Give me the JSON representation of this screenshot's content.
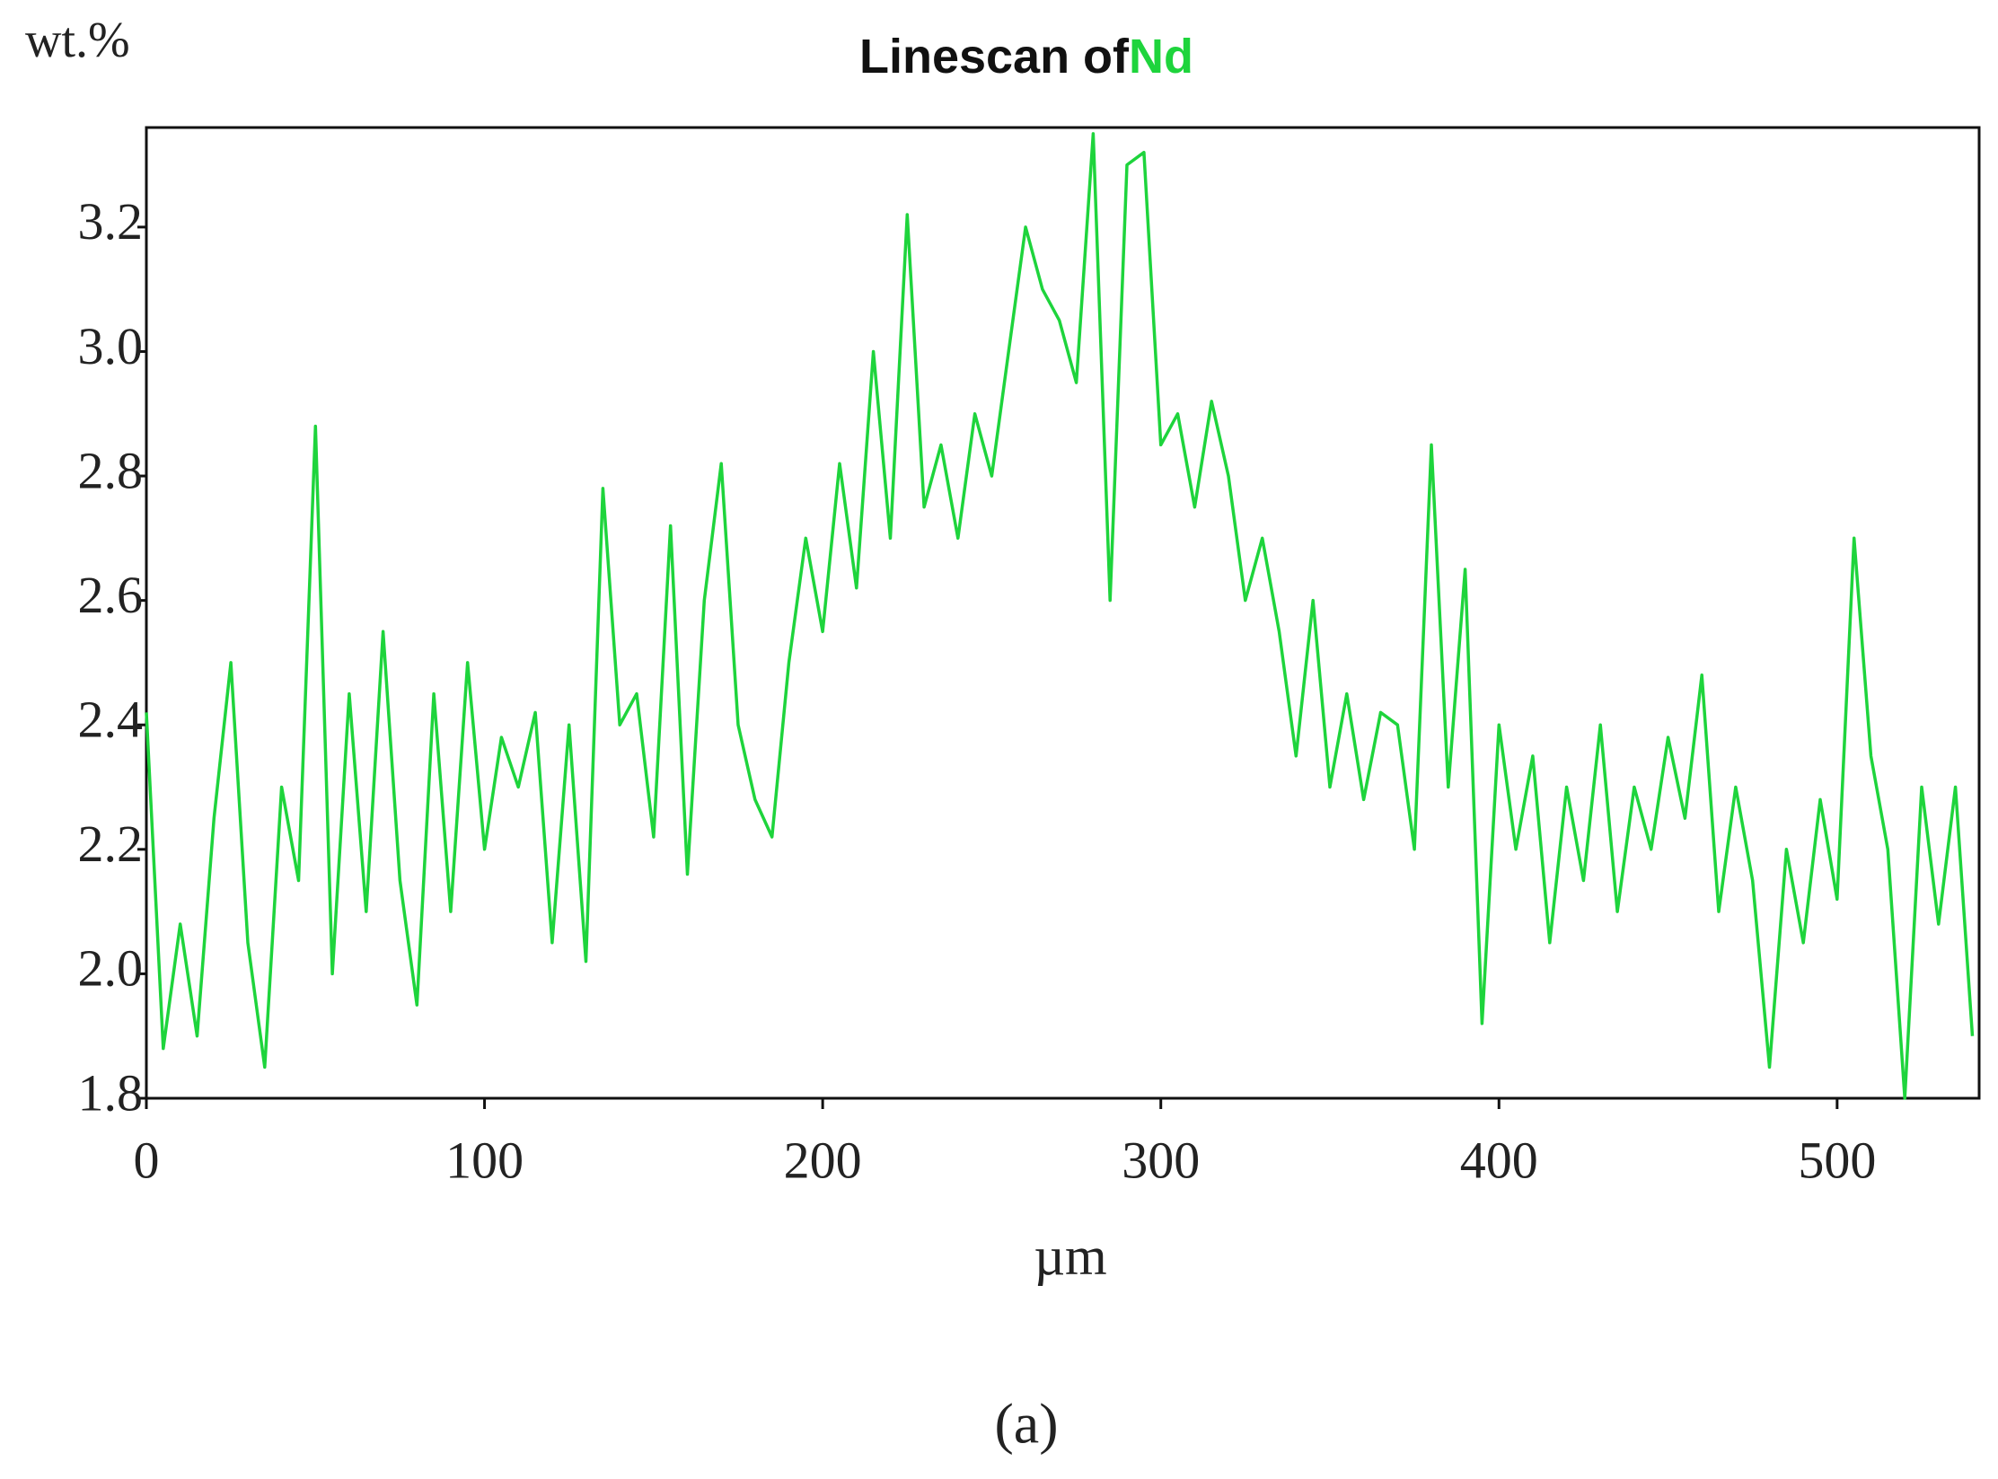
{
  "chart_data": {
    "type": "line",
    "title": "Linescan of",
    "ylabel": "wt.%",
    "xlabel": "µm",
    "caption": "(a)",
    "x": [
      0,
      5,
      10,
      15,
      20,
      25,
      30,
      35,
      40,
      45,
      50,
      55,
      60,
      65,
      70,
      75,
      80,
      85,
      90,
      95,
      100,
      105,
      110,
      115,
      120,
      125,
      130,
      135,
      140,
      145,
      150,
      155,
      160,
      165,
      170,
      175,
      180,
      185,
      190,
      195,
      200,
      205,
      210,
      215,
      220,
      225,
      230,
      235,
      240,
      245,
      250,
      255,
      260,
      265,
      270,
      275,
      280,
      285,
      290,
      295,
      300,
      305,
      310,
      315,
      320,
      325,
      330,
      335,
      340,
      345,
      350,
      355,
      360,
      365,
      370,
      375,
      380,
      385,
      390,
      395,
      400,
      405,
      410,
      415,
      420,
      425,
      430,
      435,
      440,
      445,
      450,
      455,
      460,
      465,
      470,
      475,
      480,
      485,
      490,
      495,
      500,
      505,
      510,
      515,
      520,
      525,
      530,
      535,
      540
    ],
    "series": [
      {
        "name": "Nd",
        "color": "#1ed43c",
        "values": [
          2.42,
          1.88,
          2.08,
          1.9,
          2.25,
          2.5,
          2.05,
          1.85,
          2.3,
          2.15,
          2.88,
          2.0,
          2.45,
          2.1,
          2.55,
          2.15,
          1.95,
          2.45,
          2.1,
          2.5,
          2.2,
          2.38,
          2.3,
          2.42,
          2.05,
          2.4,
          2.02,
          2.78,
          2.4,
          2.45,
          2.22,
          2.72,
          2.16,
          2.6,
          2.82,
          2.4,
          2.28,
          2.22,
          2.5,
          2.7,
          2.55,
          2.82,
          2.62,
          3.0,
          2.7,
          3.22,
          2.75,
          2.85,
          2.7,
          2.9,
          2.8,
          3.0,
          3.2,
          3.1,
          3.05,
          2.95,
          3.35,
          2.6,
          3.3,
          3.32,
          2.85,
          2.9,
          2.75,
          2.92,
          2.8,
          2.6,
          2.7,
          2.55,
          2.35,
          2.6,
          2.3,
          2.45,
          2.28,
          2.42,
          2.4,
          2.2,
          2.85,
          2.3,
          2.65,
          1.92,
          2.4,
          2.2,
          2.35,
          2.05,
          2.3,
          2.15,
          2.4,
          2.1,
          2.3,
          2.2,
          2.38,
          2.25,
          2.48,
          2.1,
          2.3,
          2.15,
          1.85,
          2.2,
          2.05,
          2.28,
          2.12,
          2.7,
          2.35,
          2.2,
          1.8,
          2.3,
          2.08,
          2.3,
          1.9
        ]
      }
    ],
    "xlim": [
      0,
      542
    ],
    "ylim": [
      1.8,
      3.36
    ],
    "xticks": [
      0,
      100,
      200,
      300,
      400,
      500
    ],
    "yticks": [
      1.8,
      {
        "value": 2,
        "label": "2.0"
      },
      2.2,
      2.4,
      2.6,
      2.8,
      {
        "value": 3,
        "label": "3.0"
      },
      3.2
    ],
    "grid": false
  }
}
